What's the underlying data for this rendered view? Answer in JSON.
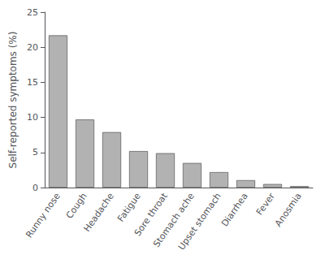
{
  "chart_data": {
    "type": "bar",
    "categories": [
      "Runny nose",
      "Cough",
      "Headache",
      "Fatigue",
      "Sore throat",
      "Stomach ache",
      "Upset stomach",
      "Diarrhea",
      "Fever",
      "Anosmia"
    ],
    "values": [
      21.7,
      9.7,
      7.9,
      5.2,
      4.9,
      3.5,
      2.2,
      1.05,
      0.5,
      0.2
    ],
    "color": "#b2b2b2",
    "ylabel": "Self-reported symptoms (%)",
    "ylim": [
      0,
      25
    ],
    "yticks": [
      0,
      5,
      10,
      15,
      20,
      25
    ],
    "grid": false
  }
}
